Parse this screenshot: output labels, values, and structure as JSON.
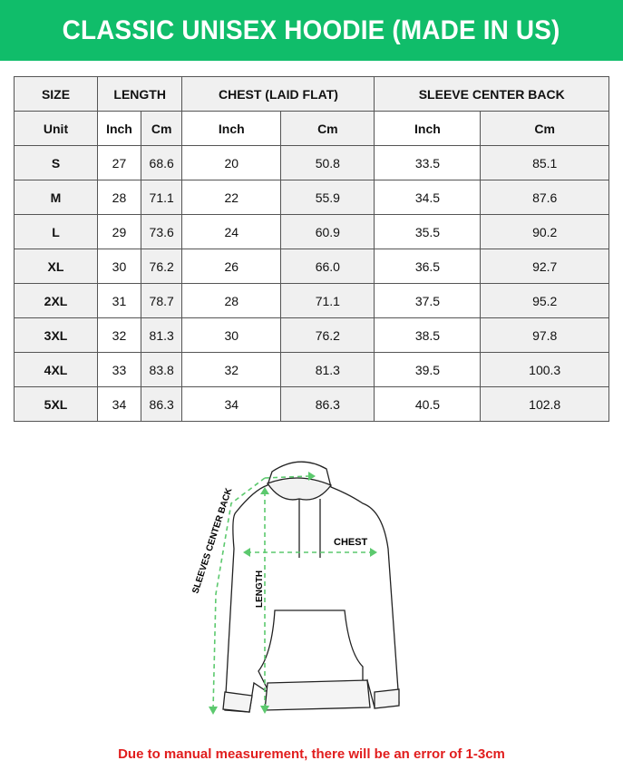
{
  "title": "CLASSIC UNISEX HOODIE (MADE IN US)",
  "colors": {
    "banner": "#10bd6a",
    "note": "#e11d1d",
    "arrows": "#5cc96e"
  },
  "table": {
    "header": [
      "SIZE",
      "LENGTH",
      "CHEST (LAID FLAT)",
      "SLEEVE CENTER BACK"
    ],
    "units": [
      "Unit",
      "Inch",
      "Cm",
      "Inch",
      "Cm",
      "Inch",
      "Cm"
    ],
    "rows": [
      [
        "S",
        "27",
        "68.6",
        "20",
        "50.8",
        "33.5",
        "85.1"
      ],
      [
        "M",
        "28",
        "71.1",
        "22",
        "55.9",
        "34.5",
        "87.6"
      ],
      [
        "L",
        "29",
        "73.6",
        "24",
        "60.9",
        "35.5",
        "90.2"
      ],
      [
        "XL",
        "30",
        "76.2",
        "26",
        "66.0",
        "36.5",
        "92.7"
      ],
      [
        "2XL",
        "31",
        "78.7",
        "28",
        "71.1",
        "37.5",
        "95.2"
      ],
      [
        "3XL",
        "32",
        "81.3",
        "30",
        "76.2",
        "38.5",
        "97.8"
      ],
      [
        "4XL",
        "33",
        "83.8",
        "32",
        "81.3",
        "39.5",
        "100.3"
      ],
      [
        "5XL",
        "34",
        "86.3",
        "34",
        "86.3",
        "40.5",
        "102.8"
      ]
    ]
  },
  "diagram": {
    "chest_label": "CHEST",
    "length_label": "LENGTH",
    "sleeve_label": "SLEEVES CENTER BACK",
    "icon": "hoodie-illustration"
  },
  "note": "Due to manual measurement, there will be an error of 1-3cm"
}
